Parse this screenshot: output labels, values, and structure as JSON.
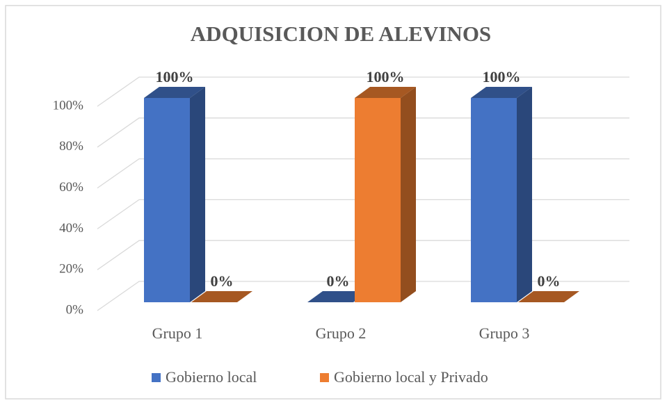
{
  "chart_data": {
    "type": "bar3d",
    "title": "ADQUISICION  DE ALEVINOS",
    "categories": [
      "Grupo 1",
      "Grupo 2",
      "Grupo 3"
    ],
    "series": [
      {
        "name": "Gobierno local",
        "color": "#4472c4",
        "values": [
          100,
          0,
          100
        ],
        "value_labels": [
          "100%",
          "0%",
          "100%"
        ]
      },
      {
        "name": "Gobierno local y Privado",
        "color": "#ed7d31",
        "values": [
          0,
          100,
          0
        ],
        "value_labels": [
          "0%",
          "100%",
          "0%"
        ]
      }
    ],
    "ylim": [
      0,
      100
    ],
    "yticks": [
      {
        "value": 0,
        "label": "0%"
      },
      {
        "value": 20,
        "label": "20%"
      },
      {
        "value": 40,
        "label": "40%"
      },
      {
        "value": 60,
        "label": "60%"
      },
      {
        "value": 80,
        "label": "80%"
      },
      {
        "value": 100,
        "label": "100%"
      }
    ],
    "grid": true,
    "legend": "bottom"
  }
}
